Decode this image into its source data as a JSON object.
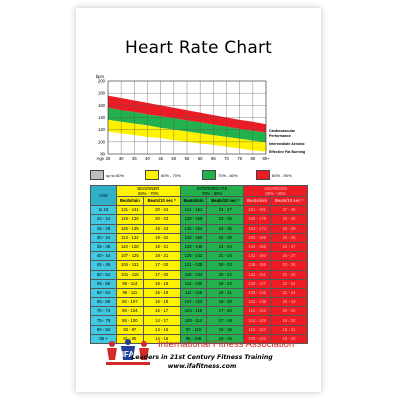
{
  "title": "Heart Rate Chart",
  "chart_data": {
    "type": "area",
    "title": "",
    "ylabel": "bpm",
    "xlabel": "Age",
    "yticks": [
      200,
      180,
      160,
      140,
      120,
      100,
      80
    ],
    "ylim": [
      80,
      200
    ],
    "x": [
      25,
      30,
      35,
      40,
      45,
      50,
      55,
      60,
      65,
      70,
      75,
      80,
      85
    ],
    "xtick_labels": [
      "25",
      "30",
      "35",
      "40",
      "45",
      "50",
      "55",
      "60",
      "65",
      "70",
      "75",
      "80",
      "85+"
    ],
    "bands": [
      {
        "name": "Cardiovascular Performance",
        "color": "#ed1c24",
        "lower": [
          156,
          152,
          149,
          145,
          142,
          139,
          135,
          132,
          128,
          125,
          121,
          118,
          115
        ],
        "upper": [
          176,
          172,
          168,
          164,
          160,
          156,
          152,
          148,
          144,
          140,
          136,
          133,
          129
        ]
      },
      {
        "name": "Intermediate Aerobic",
        "color": "#22b14c",
        "lower": [
          136,
          133,
          130,
          127,
          123,
          120,
          117,
          114,
          111,
          108,
          105,
          102,
          99
        ],
        "upper": [
          156,
          152,
          149,
          145,
          142,
          139,
          135,
          132,
          128,
          125,
          121,
          118,
          115
        ]
      },
      {
        "name": "Effective Fat Burning",
        "color": "#fff200",
        "lower": [
          117,
          114,
          111,
          108,
          106,
          103,
          100,
          97,
          95,
          92,
          89,
          86,
          84
        ],
        "upper": [
          136,
          133,
          130,
          127,
          123,
          120,
          117,
          114,
          111,
          108,
          105,
          102,
          99
        ]
      }
    ],
    "band_labels": [
      "Cardiovascular",
      "Performance",
      "Intermediate Aerobic",
      "Effective Fat Burning"
    ],
    "grid": true
  },
  "legend": [
    {
      "label": "up to 60%",
      "color": "#bdbdbd"
    },
    {
      "label": "60% - 70%",
      "color": "#fff200"
    },
    {
      "label": "70% - 80%",
      "color": "#22b14c"
    },
    {
      "label": "80% - 90%",
      "color": "#ed1c24"
    }
  ],
  "table": {
    "headers": {
      "age": "AGE",
      "beginner": "BEGINNER",
      "beginner_pct": "60% - 70%",
      "intermediate": "INTERMEDIATE",
      "intermediate_pct": "70% - 80%",
      "advanced": "ADVANCED",
      "advanced_pct": "80% - 90%"
    },
    "subheaders": [
      "Beats/min",
      "Beats/10 sec *",
      "Beats/min",
      "Beats/10 sec *",
      "Beats/min",
      "Beats/10 sec *"
    ],
    "rows": [
      [
        "to 19",
        "121 - 141",
        "20 - 24",
        "141 - 161",
        "24 - 27",
        "161 - 181",
        "27 - 30"
      ],
      [
        "20 - 24",
        "119 - 139",
        "20 - 23",
        "139 - 158",
        "23 - 26",
        "158 - 178",
        "26 - 30"
      ],
      [
        "25 - 29",
        "116 - 135",
        "19 - 23",
        "135 - 154",
        "23 - 26",
        "154 - 174",
        "26 - 29"
      ],
      [
        "30 - 34",
        "113 - 132",
        "19 - 22",
        "132 - 150",
        "22 - 25",
        "150 - 169",
        "25 - 28"
      ],
      [
        "35 - 39",
        "110 - 128",
        "18 - 21",
        "128 - 146",
        "21 - 24",
        "146 - 165",
        "24 - 27"
      ],
      [
        "40 - 44",
        "107 - 125",
        "18 - 21",
        "125 - 142",
        "21 - 24",
        "142 - 160",
        "24 - 27"
      ],
      [
        "45 - 49",
        "104 - 121",
        "17 - 20",
        "121 - 138",
        "20 - 23",
        "138 - 156",
        "23 - 26"
      ],
      [
        "50 - 54",
        "101 - 118",
        "17 - 20",
        "118 - 134",
        "20 - 22",
        "134 - 151",
        "22 - 25"
      ],
      [
        "55 - 59",
        "98 - 114",
        "16 - 19",
        "114 - 130",
        "19 - 22",
        "130 - 147",
        "22 - 24"
      ],
      [
        "60 - 64",
        "95 - 111",
        "16 - 19",
        "111 - 126",
        "19 - 21",
        "126 - 142",
        "21 - 24"
      ],
      [
        "65 - 69",
        "92 - 107",
        "15 - 18",
        "107 - 122",
        "18 - 20",
        "122 - 138",
        "20 - 23"
      ],
      [
        "70 - 74",
        "89 - 104",
        "15 - 17",
        "104 - 118",
        "17 - 20",
        "118 - 133",
        "20 - 22"
      ],
      [
        "75 - 79",
        "86 - 100",
        "14 - 17",
        "100 - 114",
        "17 - 19",
        "114 - 129",
        "19 - 22"
      ],
      [
        "80 - 84",
        "83 - 97",
        "14 - 16",
        "97 - 110",
        "16 - 18",
        "110 - 124",
        "18 - 21"
      ],
      [
        "85 +",
        "81 - 95",
        "14 - 16",
        "95 - 108",
        "16 - 18",
        "108 - 122",
        "18 - 20"
      ]
    ]
  },
  "footer": {
    "org_name": "International Fitness Association",
    "logo_text": "IFA",
    "tagline": "Leaders in 21st Century Fitness Training",
    "url": "www.ifafitness.com"
  }
}
